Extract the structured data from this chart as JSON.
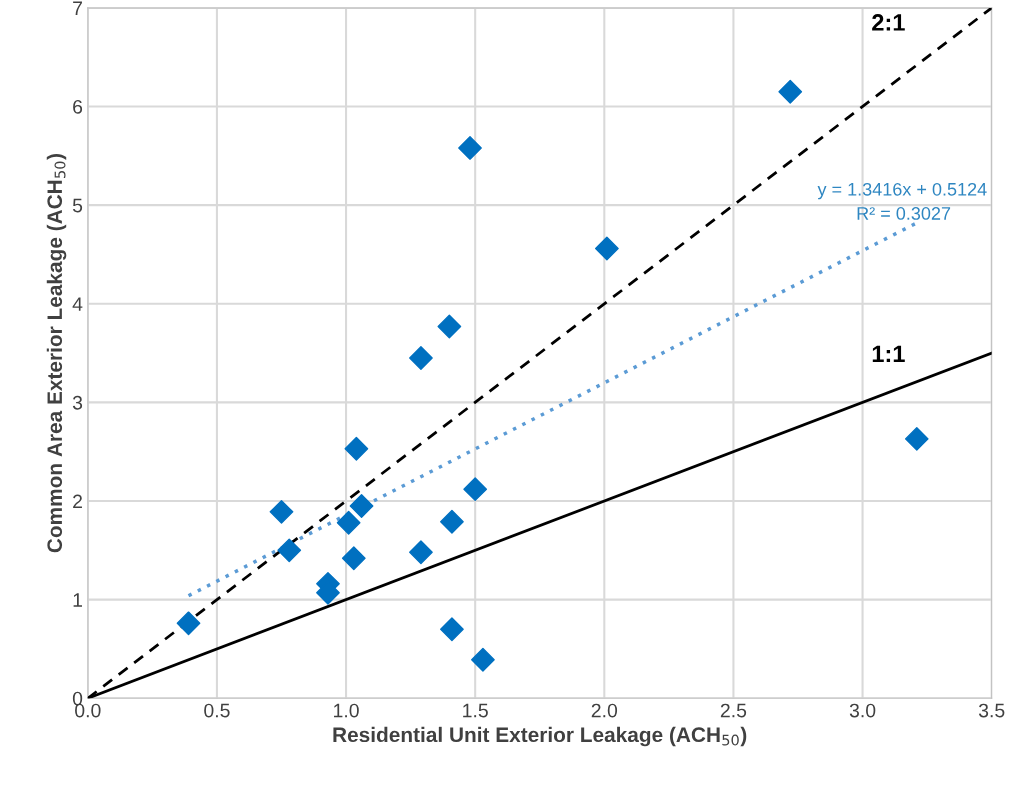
{
  "chart_data": {
    "type": "scatter",
    "xlabel": "Residential Unit Exterior Leakage (ACH$_{50}$)",
    "ylabel": "Common Area Exterior Leakage (ACH$_{50}$)",
    "xlim": [
      0,
      3.5
    ],
    "ylim": [
      0,
      7
    ],
    "xticks": [
      {
        "value": 0,
        "label": "0.0"
      },
      0.5,
      {
        "value": 1,
        "label": "1.0"
      },
      1.5,
      {
        "value": 2,
        "label": "2.0"
      },
      2.5,
      {
        "value": 3,
        "label": "3.0"
      },
      3.5
    ],
    "yticks": [
      0,
      1,
      2,
      3,
      4,
      5,
      6,
      7
    ],
    "grid": true,
    "legend": false,
    "series": [
      {
        "color": "#0070c0",
        "marker": "diamond",
        "x": [
          0.39,
          0.75,
          0.78,
          0.93,
          0.93,
          1.01,
          1.03,
          1.04,
          1.06,
          1.29,
          1.29,
          1.4,
          1.41,
          1.41,
          1.48,
          1.5,
          1.53,
          2.01,
          2.72,
          3.21
        ],
        "values": [
          0.76,
          1.89,
          1.5,
          1.16,
          1.07,
          1.78,
          1.42,
          2.53,
          1.95,
          3.45,
          1.48,
          3.77,
          0.7,
          1.79,
          5.58,
          2.12,
          0.39,
          4.56,
          6.15,
          2.63
        ]
      },
      {
        "type": "line",
        "color": "#5b9bd5",
        "line_style": "dotted",
        "x": [
          0.39,
          3.21
        ],
        "values": [
          1.04,
          4.82
        ]
      },
      {
        "type": "line",
        "name": "2:1",
        "color": "#000000",
        "line_style": "dashed",
        "x": [
          0,
          3.5
        ],
        "values": [
          0,
          7
        ]
      },
      {
        "type": "line",
        "name": "1:1",
        "color": "#000000",
        "line_style": "solid",
        "x": [
          0,
          3.5
        ],
        "values": [
          0,
          3.5
        ]
      }
    ],
    "annotations": [
      "y = 1.3416x + 0.5124",
      "R² = 0.3027"
    ]
  }
}
